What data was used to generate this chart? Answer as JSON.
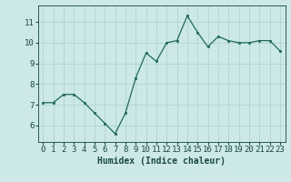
{
  "x": [
    0,
    1,
    2,
    3,
    4,
    5,
    6,
    7,
    8,
    9,
    10,
    11,
    12,
    13,
    14,
    15,
    16,
    17,
    18,
    19,
    20,
    21,
    22,
    23
  ],
  "y": [
    7.1,
    7.1,
    7.5,
    7.5,
    7.1,
    6.6,
    6.1,
    5.6,
    6.6,
    8.3,
    9.5,
    9.1,
    10.0,
    10.1,
    11.3,
    10.5,
    9.8,
    10.3,
    10.1,
    10.0,
    10.0,
    10.1,
    10.1,
    9.6
  ],
  "xlabel": "Humidex (Indice chaleur)",
  "ylim": [
    5.2,
    11.8
  ],
  "xlim": [
    -0.5,
    23.5
  ],
  "yticks": [
    6,
    7,
    8,
    9,
    10,
    11
  ],
  "xticks": [
    0,
    1,
    2,
    3,
    4,
    5,
    6,
    7,
    8,
    9,
    10,
    11,
    12,
    13,
    14,
    15,
    16,
    17,
    18,
    19,
    20,
    21,
    22,
    23
  ],
  "line_color": "#1a6b5a",
  "marker_color": "#1a6b5a",
  "bg_color": "#cce9e7",
  "grid_color": "#aacfcc",
  "axis_color": "#2d5a50",
  "tick_color": "#1a4a40",
  "xlabel_color": "#1a4a40",
  "xlabel_fontsize": 7.0,
  "tick_fontsize": 6.5
}
